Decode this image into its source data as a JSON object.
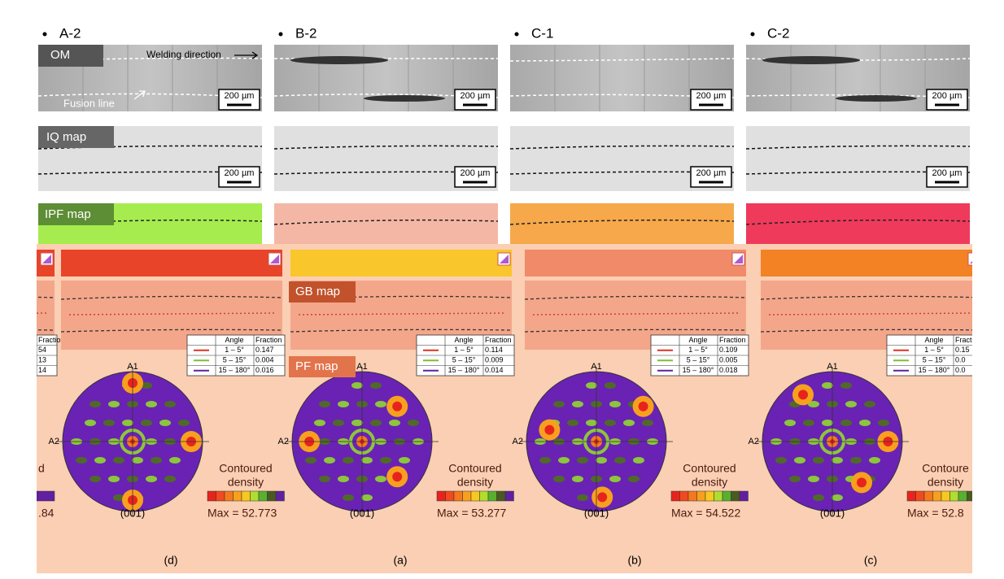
{
  "columns": [
    {
      "name": "A-2",
      "om_scale": "200 µm",
      "iq_scale": "200 µm"
    },
    {
      "name": "B-2",
      "om_scale": "200 µm",
      "iq_scale": "200 µm"
    },
    {
      "name": "C-1",
      "om_scale": "200 µm",
      "iq_scale": "200 µm"
    },
    {
      "name": "C-2",
      "om_scale": "200 µm",
      "iq_scale": "200 µm"
    }
  ],
  "row_labels": {
    "om": "OM",
    "iq": "IQ map",
    "ipf": "IPF map"
  },
  "annotations": {
    "direction": "Welding direction",
    "fusion": "Fusion line"
  },
  "bottom": {
    "gb_label": "GB map",
    "pf_label": "PF map",
    "panels": [
      {
        "fraction_header": "Fraction",
        "rows": [
          {
            "fraction": "54"
          },
          {
            "fraction": "13"
          },
          {
            "fraction": "14"
          }
        ],
        "legend_title": [
          "d"
        ],
        "max": ".84"
      },
      {
        "tag": "(d)",
        "angle_header": "Angle",
        "fraction_header": "Fraction",
        "rows": [
          {
            "angle": "1 – 5°",
            "fraction": "0.147"
          },
          {
            "angle": "5 – 15°",
            "fraction": "0.004"
          },
          {
            "angle": "15 – 180°",
            "fraction": "0.016"
          }
        ],
        "pole": {
          "top": "A1",
          "left": "A2",
          "plane": "(001)"
        },
        "legend_title": [
          "Contoured",
          "density"
        ],
        "max": "Max = 52.773"
      },
      {
        "tag": "(a)",
        "angle_header": "Angle",
        "fraction_header": "Fraction",
        "rows": [
          {
            "angle": "1 – 5°",
            "fraction": "0.114"
          },
          {
            "angle": "5 – 15°",
            "fraction": "0.009"
          },
          {
            "angle": "15 – 180°",
            "fraction": "0.014"
          }
        ],
        "pole": {
          "top": "A1",
          "left": "A2",
          "plane": "(001)"
        },
        "legend_title": [
          "Contoured",
          "density"
        ],
        "max": "Max = 53.277"
      },
      {
        "tag": "(b)",
        "angle_header": "Angle",
        "fraction_header": "Fraction",
        "rows": [
          {
            "angle": "1 – 5°",
            "fraction": "0.109"
          },
          {
            "angle": "5 – 15°",
            "fraction": "0.005"
          },
          {
            "angle": "15 – 180°",
            "fraction": "0.018"
          }
        ],
        "pole": {
          "top": "A1",
          "left": "A2",
          "plane": "(001)"
        },
        "legend_title": [
          "Contoured",
          "density"
        ],
        "max": "Max = 54.522"
      },
      {
        "tag": "(c)",
        "angle_header": "Angle",
        "fraction_header": "Fract",
        "rows": [
          {
            "angle": "1 – 5°",
            "fraction": "0.15"
          },
          {
            "angle": "5 – 15°",
            "fraction": "0.0"
          },
          {
            "angle": "15 – 180°",
            "fraction": "0.0"
          }
        ],
        "pole": {
          "top": "A1",
          "left": "A2",
          "plane": "(001)"
        },
        "legend_title": [
          "Contoure",
          "density"
        ],
        "max": "Max = 52.8"
      }
    ]
  }
}
